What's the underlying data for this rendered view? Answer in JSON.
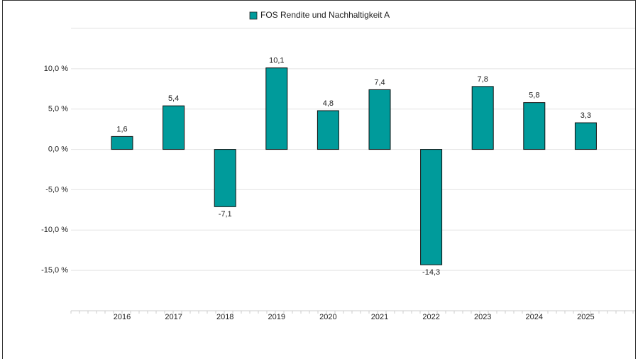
{
  "chart_data": {
    "type": "bar",
    "categories": [
      "2016",
      "2017",
      "2018",
      "2019",
      "2020",
      "2021",
      "2022",
      "2023",
      "2024",
      "2025"
    ],
    "series": [
      {
        "name": "FOS Rendite und Nachhaltigkeit A",
        "color": "#009b9b",
        "values": [
          1.6,
          5.4,
          -7.1,
          10.1,
          4.8,
          7.4,
          -14.3,
          7.8,
          5.8,
          3.3
        ],
        "value_labels": [
          "1,6",
          "5,4",
          "-7,1",
          "10,1",
          "4,8",
          "7,4",
          "-14,3",
          "7,8",
          "5,8",
          "3,3"
        ]
      }
    ],
    "ylim": [
      -20,
      15
    ],
    "yticks": [
      {
        "value": -15,
        "label": "-15,0 %"
      },
      {
        "value": -10,
        "label": "-10,0 %"
      },
      {
        "value": -5,
        "label": "-5,0 %"
      },
      {
        "value": 0,
        "label": "0,0 %"
      },
      {
        "value": 5,
        "label": "5,0 %"
      },
      {
        "value": 10,
        "label": "10,0 %"
      }
    ],
    "grid": true,
    "legend": "top"
  }
}
